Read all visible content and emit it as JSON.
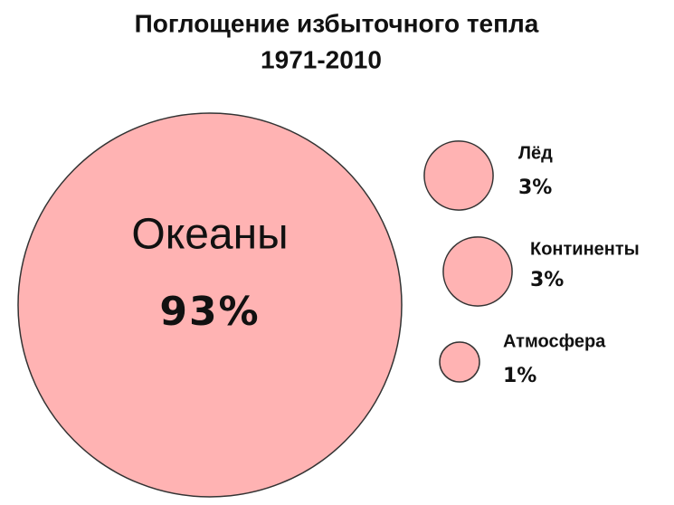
{
  "chart_data": {
    "type": "bubble",
    "title": "Поглощение избыточного тепла",
    "subtitle": "1971-2010",
    "categories": [
      "Океаны",
      "Лёд",
      "Континенты",
      "Атмосфера"
    ],
    "values": [
      93,
      3,
      3,
      1
    ],
    "value_labels": [
      "93%",
      "3%",
      "3%",
      "1%"
    ],
    "color": "#ffb3b3"
  }
}
